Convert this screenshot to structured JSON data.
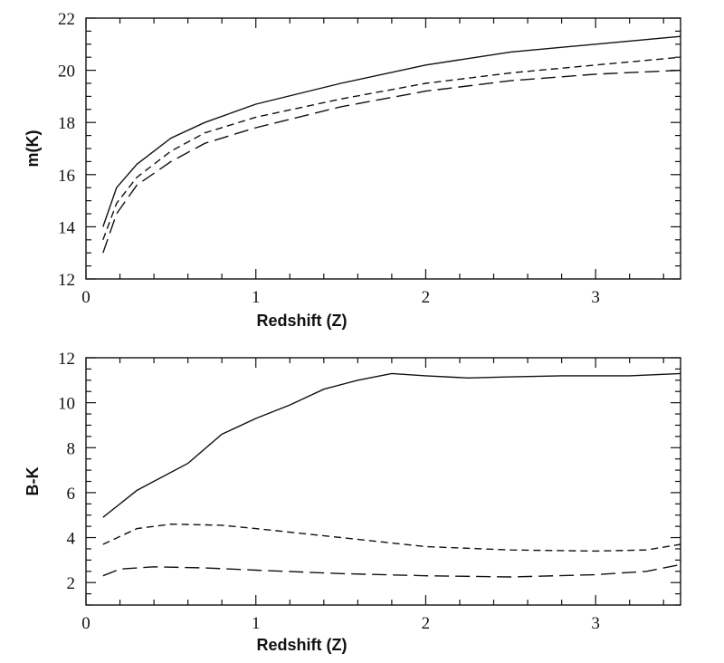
{
  "chart_data": [
    {
      "type": "line",
      "xlabel": "Redshift (Z)",
      "ylabel": "m(K)",
      "xlim": [
        0,
        3.5
      ],
      "ylim": [
        12,
        22
      ],
      "xticks": [
        0,
        1,
        2,
        3
      ],
      "yticks": [
        12,
        14,
        16,
        18,
        20,
        22
      ],
      "grid": false,
      "series": [
        {
          "style": "solid",
          "x": [
            0.1,
            0.18,
            0.3,
            0.5,
            0.7,
            1.0,
            1.5,
            2.0,
            2.5,
            3.0,
            3.5
          ],
          "y": [
            14.0,
            15.5,
            16.4,
            17.4,
            18.0,
            18.7,
            19.5,
            20.2,
            20.7,
            21.0,
            21.3
          ]
        },
        {
          "style": "dashed",
          "x": [
            0.1,
            0.18,
            0.3,
            0.5,
            0.7,
            1.0,
            1.5,
            2.0,
            2.5,
            3.0,
            3.5
          ],
          "y": [
            13.5,
            14.9,
            15.9,
            16.9,
            17.6,
            18.2,
            18.9,
            19.5,
            19.9,
            20.2,
            20.5
          ]
        },
        {
          "style": "long-dashed",
          "x": [
            0.1,
            0.18,
            0.3,
            0.5,
            0.7,
            1.0,
            1.5,
            2.0,
            2.5,
            3.0,
            3.5
          ],
          "y": [
            13.0,
            14.5,
            15.6,
            16.5,
            17.2,
            17.8,
            18.6,
            19.2,
            19.6,
            19.85,
            20.0
          ]
        }
      ]
    },
    {
      "type": "line",
      "xlabel": "Redshift (Z)",
      "ylabel": "B-K",
      "xlim": [
        0,
        3.5
      ],
      "ylim": [
        1,
        12
      ],
      "xticks": [
        0,
        1,
        2,
        3
      ],
      "yticks": [
        2,
        4,
        6,
        8,
        10,
        12
      ],
      "grid": false,
      "series": [
        {
          "style": "solid",
          "x": [
            0.1,
            0.3,
            0.6,
            0.8,
            1.0,
            1.2,
            1.4,
            1.6,
            1.8,
            2.0,
            2.25,
            2.5,
            2.8,
            3.0,
            3.2,
            3.5
          ],
          "y": [
            4.9,
            6.1,
            7.3,
            8.6,
            9.3,
            9.9,
            10.6,
            11.0,
            11.3,
            11.2,
            11.1,
            11.15,
            11.2,
            11.2,
            11.2,
            11.3
          ]
        },
        {
          "style": "dashed",
          "x": [
            0.1,
            0.3,
            0.5,
            0.8,
            1.0,
            1.5,
            2.0,
            2.5,
            3.0,
            3.3,
            3.5
          ],
          "y": [
            3.7,
            4.4,
            4.6,
            4.55,
            4.4,
            4.0,
            3.6,
            3.45,
            3.4,
            3.45,
            3.7
          ]
        },
        {
          "style": "long-dashed",
          "x": [
            0.1,
            0.2,
            0.4,
            0.7,
            1.0,
            1.5,
            2.0,
            2.5,
            3.0,
            3.3,
            3.5
          ],
          "y": [
            2.3,
            2.6,
            2.7,
            2.65,
            2.55,
            2.4,
            2.3,
            2.25,
            2.35,
            2.5,
            2.8
          ]
        }
      ]
    }
  ]
}
